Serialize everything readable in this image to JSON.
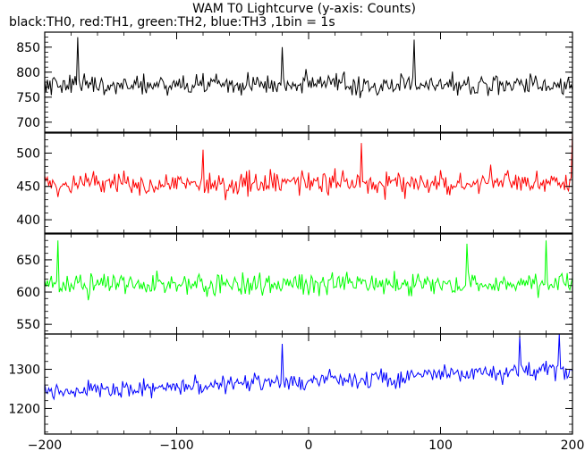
{
  "chart_data": {
    "type": "line",
    "title": "WAM T0 Lightcurve (y-axis: Counts)",
    "subtitle": "black:TH0, red:TH1, green:TH2, blue:TH3 ,1bin = 1s",
    "xlim": [
      -200,
      200
    ],
    "x_ticks": [
      -200,
      -100,
      0,
      100,
      200
    ],
    "grid": false,
    "panels": [
      {
        "name": "TH0",
        "color": "#000000",
        "ylim": [
          680,
          880
        ],
        "y_ticks": [
          700,
          750,
          800,
          850
        ],
        "baseline": 775,
        "slope": 0.0,
        "amplitude": 28,
        "spikes": [
          {
            "x": -175,
            "value": 870
          },
          {
            "x": 80,
            "value": 865
          },
          {
            "x": -20,
            "value": 850
          }
        ]
      },
      {
        "name": "TH1",
        "color": "#ff0000",
        "ylim": [
          380,
          530
        ],
        "y_ticks": [
          400,
          450,
          500
        ],
        "baseline": 455,
        "slope": 0.0,
        "amplitude": 22,
        "spikes": [
          {
            "x": 200,
            "value": 530
          },
          {
            "x": 40,
            "value": 515
          },
          {
            "x": -80,
            "value": 505
          }
        ]
      },
      {
        "name": "TH2",
        "color": "#00ff00",
        "ylim": [
          535,
          690
        ],
        "y_ticks": [
          550,
          600,
          650
        ],
        "baseline": 612,
        "slope": 0.0,
        "amplitude": 22,
        "spikes": [
          {
            "x": -190,
            "value": 680
          },
          {
            "x": 120,
            "value": 675
          },
          {
            "x": 180,
            "value": 680
          }
        ]
      },
      {
        "name": "TH3",
        "color": "#0000ff",
        "ylim": [
          1135,
          1390
        ],
        "y_ticks": [
          1200,
          1300
        ],
        "baseline": 1270,
        "slope": 0.15,
        "amplitude": 32,
        "spikes": [
          {
            "x": 190,
            "value": 1390
          },
          {
            "x": -20,
            "value": 1365
          },
          {
            "x": 160,
            "value": 1385
          }
        ]
      }
    ]
  }
}
